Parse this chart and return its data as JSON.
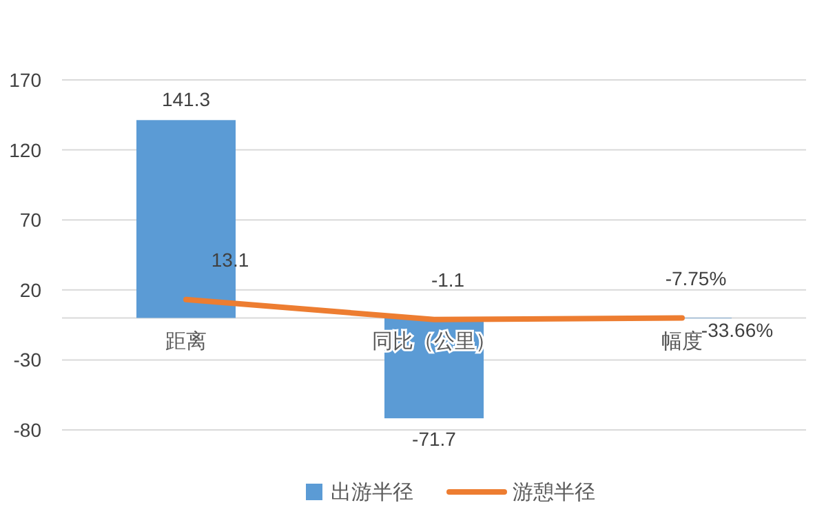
{
  "chart_data": {
    "type": "bar",
    "categories": [
      "距离",
      "同比（公里）",
      "幅度"
    ],
    "series": [
      {
        "name": "出游半径",
        "color": "#5b9bd5",
        "values": [
          141.3,
          -71.7,
          -0.3366
        ],
        "value_labels": [
          "141.3",
          "-71.7",
          "-33.66%"
        ]
      },
      {
        "name": "游憩半径",
        "type": "line",
        "color": "#ed7d31",
        "values": [
          13.1,
          -1.1,
          -0.0775
        ],
        "value_labels": [
          "13.1",
          "-1.1",
          "-7.75%"
        ]
      }
    ],
    "ylim": [
      -80,
      170
    ],
    "yticks": [
      -80,
      -30,
      20,
      70,
      120,
      170
    ],
    "grid": "y",
    "legend": "bottom",
    "line_style": "solid",
    "marker": "none"
  }
}
